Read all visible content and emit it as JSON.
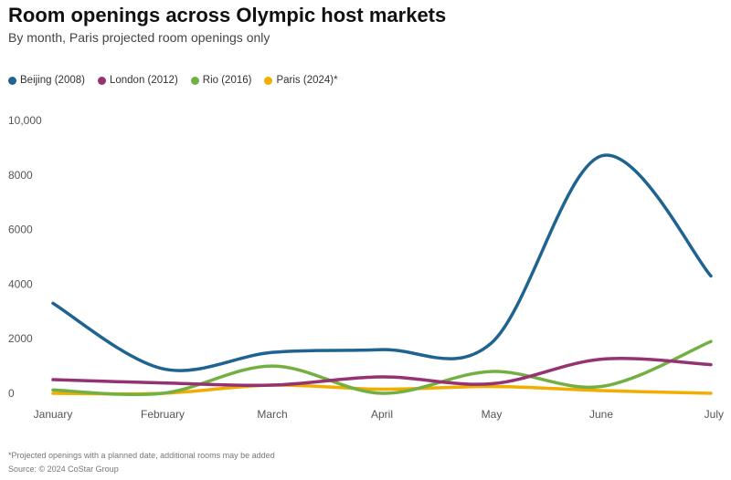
{
  "chart_data": {
    "type": "line",
    "title": "Room openings across Olympic host markets",
    "subtitle": "By month, Paris projected room openings only",
    "categories": [
      "January",
      "February",
      "March",
      "April",
      "May",
      "June",
      "July"
    ],
    "yticks": [
      "0",
      "2000",
      "4000",
      "6000",
      "8000",
      "10,000"
    ],
    "ylim": [
      0,
      10000
    ],
    "series": [
      {
        "name": "Beijing (2008)",
        "color": "#1f6390",
        "values": [
          3300,
          900,
          1500,
          1600,
          1850,
          8700,
          4300
        ]
      },
      {
        "name": "London (2012)",
        "color": "#953271",
        "values": [
          500,
          380,
          300,
          600,
          350,
          1250,
          1050
        ]
      },
      {
        "name": "Rio (2016)",
        "color": "#72b043",
        "values": [
          120,
          0,
          1000,
          0,
          800,
          250,
          1900
        ]
      },
      {
        "name": "Paris (2024)*",
        "color": "#f2ad00",
        "values": [
          0,
          0,
          300,
          150,
          250,
          100,
          0
        ]
      }
    ],
    "legend_position": "top-left",
    "footnote": "*Projected openings with a planned date, additional rooms may be added",
    "source": "Source: © 2024 CoStar Group"
  }
}
